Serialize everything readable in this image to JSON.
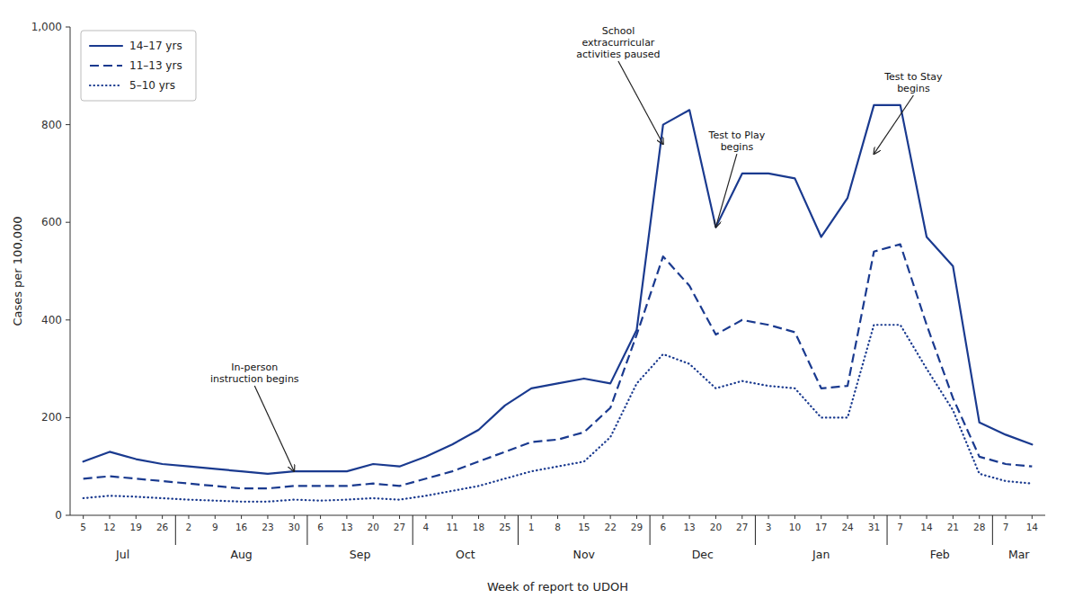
{
  "chart_data": {
    "type": "line",
    "xlabel": "Week of report to UDOH",
    "ylabel": "Cases per 100,000",
    "categories": [
      "5",
      "12",
      "19",
      "26",
      "2",
      "9",
      "16",
      "23",
      "30",
      "6",
      "13",
      "20",
      "27",
      "4",
      "11",
      "18",
      "25",
      "1",
      "8",
      "15",
      "22",
      "29",
      "6",
      "13",
      "20",
      "27",
      "3",
      "10",
      "17",
      "24",
      "31",
      "7",
      "14",
      "21",
      "28",
      "7",
      "14"
    ],
    "category_groups": [
      {
        "label": "Jul",
        "count": 4
      },
      {
        "label": "Aug",
        "count": 5
      },
      {
        "label": "Sep",
        "count": 4
      },
      {
        "label": "Oct",
        "count": 4
      },
      {
        "label": "Nov",
        "count": 5
      },
      {
        "label": "Dec",
        "count": 4
      },
      {
        "label": "Jan",
        "count": 5
      },
      {
        "label": "Feb",
        "count": 4
      },
      {
        "label": "Mar",
        "count": 2
      }
    ],
    "series": [
      {
        "name": "14–17 yrs",
        "color": "#1a3a8f",
        "line_style": "solid",
        "values": [
          110,
          130,
          115,
          105,
          100,
          95,
          90,
          85,
          90,
          90,
          90,
          105,
          100,
          120,
          145,
          175,
          225,
          260,
          270,
          280,
          270,
          380,
          800,
          830,
          590,
          700,
          700,
          690,
          570,
          650,
          840,
          840,
          570,
          510,
          190,
          165,
          145
        ]
      },
      {
        "name": "11–13 yrs",
        "color": "#1a3a8f",
        "line_style": "dashed",
        "values": [
          75,
          80,
          75,
          70,
          65,
          60,
          55,
          55,
          60,
          60,
          60,
          65,
          60,
          75,
          90,
          110,
          130,
          150,
          155,
          170,
          220,
          370,
          530,
          470,
          370,
          400,
          390,
          375,
          260,
          265,
          540,
          555,
          390,
          240,
          120,
          105,
          100
        ]
      },
      {
        "name": "5–10 yrs",
        "color": "#1a3a8f",
        "line_style": "dotted",
        "values": [
          35,
          40,
          38,
          35,
          32,
          30,
          28,
          28,
          32,
          30,
          32,
          35,
          32,
          40,
          50,
          60,
          75,
          90,
          100,
          110,
          160,
          270,
          330,
          310,
          260,
          275,
          265,
          260,
          200,
          200,
          390,
          390,
          300,
          215,
          85,
          70,
          65
        ]
      }
    ],
    "ylim": [
      0,
      1000
    ],
    "yticks": [
      0,
      200,
      400,
      600,
      800,
      {
        "value": 1000,
        "label": "1,000"
      }
    ],
    "grid": false,
    "legend": "upper left",
    "annotations": [
      {
        "text": "In-person\ninstruction begins",
        "x": 8,
        "y": 90
      },
      {
        "text": "School\nextracurricular\nactivities paused",
        "x": 22,
        "y": 760
      },
      {
        "text": "Test to Play\nbegins",
        "x": 24,
        "y": 590
      },
      {
        "text": "Test to Stay\nbegins",
        "x": 30,
        "y": 740
      }
    ]
  }
}
